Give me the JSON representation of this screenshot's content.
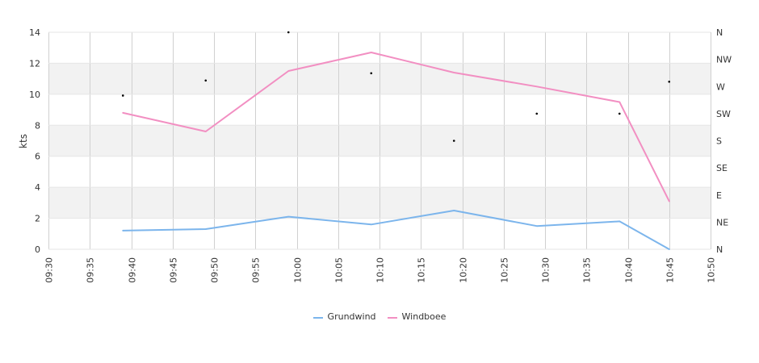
{
  "chart_data": {
    "type": "line",
    "ylabel": "kts",
    "ylim": [
      0,
      14
    ],
    "yticks": [
      "0",
      "2",
      "4",
      "6",
      "8",
      "10",
      "12",
      "14"
    ],
    "x_range": [
      "09:30",
      "10:50"
    ],
    "xticks": [
      "09:30",
      "09:35",
      "09:40",
      "09:45",
      "09:50",
      "09:55",
      "10:00",
      "10:05",
      "10:10",
      "10:15",
      "10:20",
      "10:25",
      "10:30",
      "10:35",
      "10:40",
      "10:45",
      "10:50"
    ],
    "right_axis": {
      "label_ticks": [
        "N",
        "NE",
        "E",
        "SE",
        "S",
        "SW",
        "W",
        "NW",
        "N"
      ],
      "range_deg": [
        0,
        360
      ]
    },
    "grid": true,
    "series": [
      {
        "name": "Grundwind",
        "color": "#7cb5ec",
        "points": [
          {
            "x": "09:39",
            "y": 1.2
          },
          {
            "x": "09:49",
            "y": 1.3
          },
          {
            "x": "09:59",
            "y": 2.1
          },
          {
            "x": "10:09",
            "y": 1.6
          },
          {
            "x": "10:19",
            "y": 2.5
          },
          {
            "x": "10:29",
            "y": 1.5
          },
          {
            "x": "10:39",
            "y": 1.8
          },
          {
            "x": "10:45",
            "y": 0.0
          }
        ]
      },
      {
        "name": "Windboee",
        "color": "#f28fc2",
        "points": [
          {
            "x": "09:39",
            "y": 8.8
          },
          {
            "x": "09:49",
            "y": 7.6
          },
          {
            "x": "09:59",
            "y": 11.5
          },
          {
            "x": "10:09",
            "y": 12.7
          },
          {
            "x": "10:19",
            "y": 11.4
          },
          {
            "x": "10:29",
            "y": 10.5
          },
          {
            "x": "10:39",
            "y": 9.5
          },
          {
            "x": "10:45",
            "y": 3.1
          }
        ]
      },
      {
        "type": "scatter",
        "axis": "right",
        "color": "#000000",
        "points": [
          {
            "x": "09:39",
            "dir": 255
          },
          {
            "x": "09:49",
            "dir": 280
          },
          {
            "x": "09:59",
            "dir": 360
          },
          {
            "x": "10:09",
            "dir": 292
          },
          {
            "x": "10:19",
            "dir": 180
          },
          {
            "x": "10:29",
            "dir": 225
          },
          {
            "x": "10:39",
            "dir": 225
          },
          {
            "x": "10:45",
            "dir": 278
          }
        ]
      }
    ]
  }
}
